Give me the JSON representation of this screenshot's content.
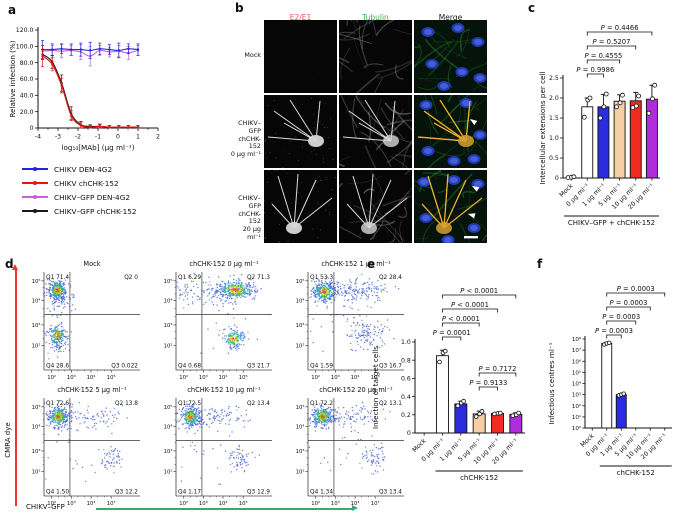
{
  "panels": {
    "a": {
      "label": "a"
    },
    "b": {
      "label": "b",
      "col_headers": [
        {
          "text": "E2/E1",
          "color": "#e8544e"
        },
        {
          "text": "Tubulin",
          "color": "#3fae49"
        },
        {
          "text": "Merge",
          "color": "#1a1a1a"
        }
      ],
      "rows": [
        {
          "label_lines": [
            "Mock",
            "",
            ""
          ]
        },
        {
          "label_lines": [
            "CHIKV–GFP",
            "chCHK-152",
            "0 μg ml⁻¹"
          ]
        },
        {
          "label_lines": [
            "CHIKV–GFP",
            "chCHK-152",
            "20 μg ml⁻¹"
          ]
        }
      ]
    },
    "c": {
      "label": "c"
    },
    "d": {
      "label": "d"
    },
    "e": {
      "label": "e"
    },
    "f": {
      "label": "f"
    }
  },
  "chart_data": [
    {
      "panel": "a",
      "type": "line",
      "xlabel": "log₁₀[MAb] (μg ml⁻¹)",
      "ylabel": "Relative infection (%)",
      "xlim": [
        -4,
        2
      ],
      "ylim": [
        0,
        120
      ],
      "xticks": [
        -4,
        -3,
        -2,
        -1,
        0,
        1,
        2
      ],
      "yticks": [
        0,
        20,
        40,
        60,
        80,
        100,
        120
      ],
      "ytick_labels": [
        "0",
        "20.0",
        "40.0",
        "60.0",
        "80.0",
        "100.0",
        "120.0"
      ],
      "x": [
        -3.77,
        -3.29,
        -2.82,
        -2.34,
        -1.86,
        -1.39,
        -0.91,
        -0.43,
        0.04,
        0.52,
        1.0
      ],
      "series": [
        {
          "name": "CHIKV DEN-4G2",
          "color": "#2424dd",
          "values": [
            96,
            96,
            97,
            96,
            96,
            95,
            97,
            96,
            95,
            97,
            96
          ],
          "errors": [
            11,
            7,
            6,
            7,
            8,
            10,
            7,
            6,
            9,
            6,
            7
          ]
        },
        {
          "name": "CHIKV chCHK-152",
          "color": "#e81410",
          "values": [
            88,
            78,
            52,
            15,
            3,
            1,
            2,
            1,
            1,
            1,
            1
          ],
          "errors": [
            13,
            8,
            9,
            6,
            4,
            2,
            3,
            2,
            2,
            2,
            2
          ]
        },
        {
          "name": "CHIKV–GFP DEN-4G2",
          "color": "#c75fd8",
          "values": [
            94,
            95,
            94,
            95,
            93,
            88,
            95,
            93,
            94,
            92,
            95
          ],
          "errors": [
            7,
            6,
            8,
            6,
            9,
            12,
            6,
            6,
            7,
            8,
            6
          ]
        },
        {
          "name": "CHIKV–GFP chCHK-152",
          "color": "#1a1a1a",
          "values": [
            90,
            81,
            55,
            18,
            4,
            2,
            2,
            1,
            1,
            1,
            1
          ],
          "errors": [
            6,
            8,
            10,
            8,
            4,
            2,
            2,
            2,
            2,
            2,
            2
          ]
        }
      ]
    },
    {
      "panel": "c",
      "type": "bar",
      "ylabel": "Intercellular extensions per cell",
      "group_label": "CHIKV–GFP + chCHK-152",
      "group_span": [
        0,
        5
      ],
      "categories": [
        "Mock",
        "0 μg ml⁻¹",
        "1 μg ml⁻¹",
        "5 μg ml⁻¹",
        "10 μg ml⁻¹",
        "20 μg ml⁻¹"
      ],
      "values": [
        0,
        1.78,
        1.78,
        1.92,
        1.93,
        1.97
      ],
      "errors": [
        0,
        0.22,
        0.31,
        0.16,
        0.21,
        0.35
      ],
      "points": [
        [
          0.01,
          0.02,
          0.03
        ],
        [
          1.52,
          1.95,
          2.0
        ],
        [
          1.5,
          1.78,
          2.1
        ],
        [
          1.78,
          1.88,
          2.07
        ],
        [
          1.76,
          1.8,
          2.05
        ],
        [
          1.62,
          1.98,
          2.32
        ]
      ],
      "colors": [
        "#ffffff",
        "#ffffff",
        "#2b2be0",
        "#f7cfa4",
        "#ee2c24",
        "#b02ddb"
      ],
      "ylim": [
        0,
        2.5
      ],
      "yticks": [
        0,
        0.5,
        1.0,
        1.5,
        2.0,
        2.5
      ],
      "comparisons": [
        {
          "a": 1,
          "b": 2,
          "label": "P = 0.9986",
          "tier": "top",
          "row": 0
        },
        {
          "a": 1,
          "b": 3,
          "label": "P = 0.4555",
          "tier": "top",
          "row": 1
        },
        {
          "a": 1,
          "b": 4,
          "label": "P = 0.5207",
          "tier": "top",
          "row": 2
        },
        {
          "a": 1,
          "b": 5,
          "label": "P = 0.4466",
          "tier": "top",
          "row": 3
        }
      ]
    },
    {
      "panel": "d",
      "type": "flow-cytometry",
      "xlabel": "CHIKV–GFP",
      "ylabel": "CMRA dye",
      "ticks": [
        "10²",
        "10³",
        "10⁴",
        "10⁵"
      ],
      "plots": [
        {
          "title": "Mock",
          "q": {
            "Q1": "71.4",
            "Q2": "0",
            "Q3": "0.022",
            "Q4": "28.6"
          },
          "clusters": [
            {
              "fx": 0.14,
              "fy": 0.19,
              "sx": 0.05,
              "sy": 0.05,
              "n": 330,
              "type": "dense"
            },
            {
              "fx": 0.17,
              "fy": 0.3,
              "sx": 0.08,
              "sy": 0.08,
              "n": 70,
              "type": "sparse"
            },
            {
              "fx": 0.14,
              "fy": 0.65,
              "sx": 0.045,
              "sy": 0.05,
              "n": 200,
              "type": "dense"
            },
            {
              "fx": 0.16,
              "fy": 0.73,
              "sx": 0.07,
              "sy": 0.06,
              "n": 40,
              "type": "sparse"
            }
          ]
        },
        {
          "title": "chCHK-152 0 μg ml⁻¹",
          "q": {
            "Q1": "6.29",
            "Q2": "71.3",
            "Q3": "21.7",
            "Q4": "0.68"
          },
          "clusters": [
            {
              "fx": 0.62,
              "fy": 0.18,
              "sx": 0.1,
              "sy": 0.05,
              "n": 360,
              "type": "dense"
            },
            {
              "fx": 0.44,
              "fy": 0.22,
              "sx": 0.13,
              "sy": 0.06,
              "n": 70,
              "type": "sparse"
            },
            {
              "fx": 0.6,
              "fy": 0.68,
              "sx": 0.055,
              "sy": 0.05,
              "n": 170,
              "type": "dense"
            },
            {
              "fx": 0.14,
              "fy": 0.2,
              "sx": 0.07,
              "sy": 0.07,
              "n": 40,
              "type": "sparse"
            },
            {
              "fx": 0.45,
              "fy": 0.45,
              "sx": 0.28,
              "sy": 0.25,
              "n": 25,
              "type": "sparse"
            }
          ]
        },
        {
          "title": "chCHK-152 1 μg ml⁻¹",
          "q": {
            "Q1": "53.3",
            "Q2": "28.4",
            "Q3": "16.7",
            "Q4": "1.59"
          },
          "clusters": [
            {
              "fx": 0.17,
              "fy": 0.2,
              "sx": 0.06,
              "sy": 0.05,
              "n": 320,
              "type": "dense"
            },
            {
              "fx": 0.5,
              "fy": 0.19,
              "sx": 0.17,
              "sy": 0.05,
              "n": 170,
              "type": "sparse"
            },
            {
              "fx": 0.62,
              "fy": 0.64,
              "sx": 0.1,
              "sy": 0.08,
              "n": 110,
              "type": "sparse"
            },
            {
              "fx": 0.35,
              "fy": 0.42,
              "sx": 0.22,
              "sy": 0.2,
              "n": 40,
              "type": "sparse"
            }
          ]
        },
        {
          "title": "chCHK-152 5 μg ml⁻¹",
          "q": {
            "Q1": "72.6",
            "Q2": "13.8",
            "Q3": "12.2",
            "Q4": "1.50"
          },
          "clusters": [
            {
              "fx": 0.15,
              "fy": 0.19,
              "sx": 0.055,
              "sy": 0.05,
              "n": 330,
              "type": "dense"
            },
            {
              "fx": 0.48,
              "fy": 0.19,
              "sx": 0.16,
              "sy": 0.05,
              "n": 80,
              "type": "sparse"
            },
            {
              "fx": 0.7,
              "fy": 0.62,
              "sx": 0.06,
              "sy": 0.06,
              "n": 55,
              "type": "sparse"
            },
            {
              "fx": 0.3,
              "fy": 0.45,
              "sx": 0.22,
              "sy": 0.22,
              "n": 30,
              "type": "sparse"
            }
          ]
        },
        {
          "title": "chCHK-152 10 μg ml⁻¹",
          "q": {
            "Q1": "72.5",
            "Q2": "13.4",
            "Q3": "12.9",
            "Q4": "1.17"
          },
          "clusters": [
            {
              "fx": 0.15,
              "fy": 0.19,
              "sx": 0.055,
              "sy": 0.05,
              "n": 330,
              "type": "dense"
            },
            {
              "fx": 0.5,
              "fy": 0.19,
              "sx": 0.16,
              "sy": 0.05,
              "n": 80,
              "type": "sparse"
            },
            {
              "fx": 0.66,
              "fy": 0.63,
              "sx": 0.07,
              "sy": 0.06,
              "n": 60,
              "type": "sparse"
            },
            {
              "fx": 0.3,
              "fy": 0.45,
              "sx": 0.22,
              "sy": 0.22,
              "n": 30,
              "type": "sparse"
            }
          ]
        },
        {
          "title": "chCHK-152 20 μg ml⁻¹",
          "q": {
            "Q1": "72.2",
            "Q2": "13.1",
            "Q3": "13.4",
            "Q4": "1.34"
          },
          "clusters": [
            {
              "fx": 0.15,
              "fy": 0.19,
              "sx": 0.055,
              "sy": 0.05,
              "n": 330,
              "type": "dense"
            },
            {
              "fx": 0.5,
              "fy": 0.19,
              "sx": 0.16,
              "sy": 0.05,
              "n": 80,
              "type": "sparse"
            },
            {
              "fx": 0.68,
              "fy": 0.61,
              "sx": 0.07,
              "sy": 0.06,
              "n": 60,
              "type": "sparse"
            },
            {
              "fx": 0.3,
              "fy": 0.45,
              "sx": 0.22,
              "sy": 0.22,
              "n": 30,
              "type": "sparse"
            }
          ]
        }
      ]
    },
    {
      "panel": "e",
      "type": "bar",
      "ylabel": "Infection of target cells",
      "group_label": "chCHK-152",
      "group_span": [
        1,
        5
      ],
      "categories": [
        "Mock",
        "0 μg ml⁻¹",
        "1 μg ml⁻¹",
        "5 μg ml⁻¹",
        "10 μg ml⁻¹",
        "20 μg ml⁻¹"
      ],
      "values": [
        0,
        0.85,
        0.32,
        0.21,
        0.215,
        0.205
      ],
      "errors": [
        0,
        0.06,
        0.03,
        0.03,
        0.012,
        0.018
      ],
      "points": [
        [],
        [
          0.78,
          0.88,
          0.9
        ],
        [
          0.3,
          0.33,
          0.35
        ],
        [
          0.18,
          0.21,
          0.24
        ],
        [
          0.21,
          0.215,
          0.22
        ],
        [
          0.19,
          0.2,
          0.22
        ]
      ],
      "colors": [
        "#ffffff",
        "#ffffff",
        "#2b2be0",
        "#f7cfa4",
        "#ee2c24",
        "#b02ddb"
      ],
      "ylim": [
        0,
        1.0
      ],
      "yticks": [
        0,
        0.2,
        0.4,
        0.6,
        0.8,
        1.0
      ],
      "comparisons": [
        {
          "a": 1,
          "b": 2,
          "label": "P = 0.0001",
          "tier": "top",
          "row": 0
        },
        {
          "a": 1,
          "b": 3,
          "label": "P < 0.0001",
          "tier": "top",
          "row": 1
        },
        {
          "a": 1,
          "b": 4,
          "label": "P < 0.0001",
          "tier": "top",
          "row": 2
        },
        {
          "a": 1,
          "b": 5,
          "label": "P < 0.0001",
          "tier": "top",
          "row": 3
        },
        {
          "a": 3,
          "b": 4,
          "label": "P = 0.9133",
          "tier": "mid",
          "row": 0
        },
        {
          "a": 3,
          "b": 5,
          "label": "P = 0.7172",
          "tier": "mid",
          "row": 1
        }
      ]
    },
    {
      "panel": "f",
      "type": "bar",
      "log": true,
      "ylabel": "Infectious centres ml⁻¹",
      "group_label": "chCHK-152",
      "group_span": [
        1,
        5
      ],
      "categories": [
        "Mock",
        "0 μg ml⁻¹",
        "1 μg ml⁻¹",
        "5 μg ml⁻¹",
        "10 μg ml⁻¹",
        "20 μg ml⁻¹"
      ],
      "values": [
        0,
        40000000,
        1000,
        0,
        0,
        0
      ],
      "errors": [
        0,
        8000000,
        200,
        0,
        0,
        0
      ],
      "points": [
        [],
        [
          32000000,
          40000000,
          46000000
        ],
        [
          850,
          1000,
          1200
        ],
        [],
        [],
        []
      ],
      "colors": [
        "#ffffff",
        "#ffffff",
        "#2b2be0",
        "#f7cfa4",
        "#ee2c24",
        "#b02ddb"
      ],
      "ylim_log": [
        1,
        100000000
      ],
      "ytick_labels": [
        "10⁰",
        "10¹",
        "10²",
        "10³",
        "10⁴",
        "10⁵",
        "10⁶",
        "10⁷",
        "10⁸"
      ],
      "comparisons": [
        {
          "a": 1,
          "b": 2,
          "label": "P = 0.0003",
          "tier": "top",
          "row": 0
        },
        {
          "a": 1,
          "b": 3,
          "label": "P = 0.0003",
          "tier": "top",
          "row": 1
        },
        {
          "a": 1,
          "b": 4,
          "label": "P = 0.0003",
          "tier": "top",
          "row": 2
        },
        {
          "a": 1,
          "b": 5,
          "label": "P = 0.0003",
          "tier": "top",
          "row": 3
        }
      ]
    }
  ]
}
